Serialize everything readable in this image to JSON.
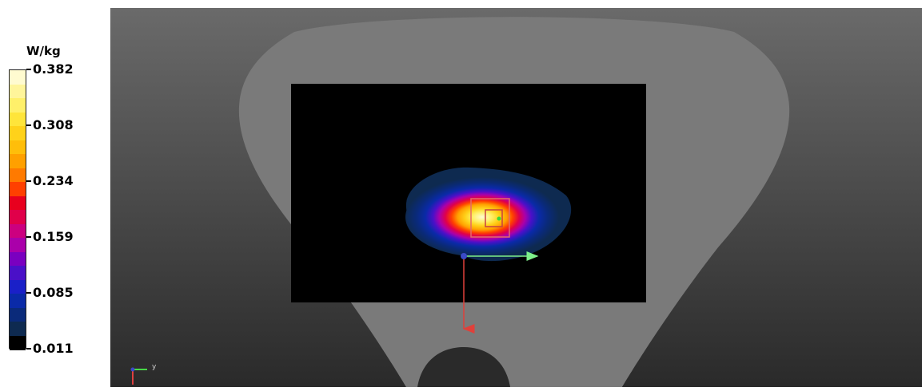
{
  "legend": {
    "unit": "W/kg",
    "labels": [
      "0.382",
      "0.308",
      "0.234",
      "0.159",
      "0.085",
      "0.011"
    ],
    "colors": [
      "#fffbd0",
      "#fff59a",
      "#fff06a",
      "#ffe53a",
      "#ffd21a",
      "#ffbe0a",
      "#ffa000",
      "#ff7a00",
      "#ff4000",
      "#e8001e",
      "#e0004a",
      "#cc0080",
      "#aa00aa",
      "#7a00c0",
      "#4a10c8",
      "#1a20c8",
      "#0a2aa8",
      "#0a2a7a",
      "#0e2a50",
      "#000000"
    ]
  },
  "scene": {
    "background_top": "#6a6a6a",
    "background_bottom": "#2a2a2a",
    "phantom_color": "#7a7a7a",
    "plane_color": "#000000"
  },
  "axes": {
    "y_label": "y"
  }
}
